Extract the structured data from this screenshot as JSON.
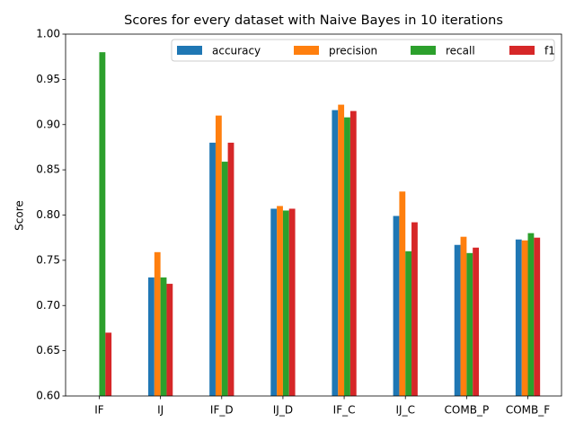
{
  "chart_data": {
    "type": "bar",
    "title": "Scores for every dataset with Naive Bayes in 10 iterations",
    "y_label": "Score",
    "categories": [
      "IF",
      "IJ",
      "IF_D",
      "IJ_D",
      "IF_C",
      "IJ_C",
      "COMB_P",
      "COMB_F"
    ],
    "series": [
      {
        "name": "accuracy",
        "color": "#1f77b4",
        "values": [
          null,
          0.731,
          0.88,
          0.807,
          0.916,
          0.799,
          0.767,
          0.773
        ]
      },
      {
        "name": "precision",
        "color": "#ff7f0e",
        "values": [
          null,
          0.759,
          0.91,
          0.81,
          0.922,
          0.826,
          0.776,
          0.772
        ]
      },
      {
        "name": "recall",
        "color": "#2ca02c",
        "values": [
          0.98,
          0.731,
          0.859,
          0.805,
          0.908,
          0.76,
          0.758,
          0.78
        ]
      },
      {
        "name": "f1",
        "color": "#d62728",
        "values": [
          0.67,
          0.724,
          0.88,
          0.807,
          0.915,
          0.792,
          0.764,
          0.775
        ]
      }
    ],
    "ylim": [
      0.6,
      1.0
    ],
    "yticks": [
      {
        "value": 0.6,
        "label": "0.60"
      },
      0.65,
      {
        "value": 0.7,
        "label": "0.70"
      },
      0.75,
      {
        "value": 0.8,
        "label": "0.80"
      },
      0.85,
      {
        "value": 0.9,
        "label": "0.90"
      },
      0.95,
      {
        "value": 1.0,
        "label": "1.00"
      }
    ],
    "legend": "upper right"
  }
}
